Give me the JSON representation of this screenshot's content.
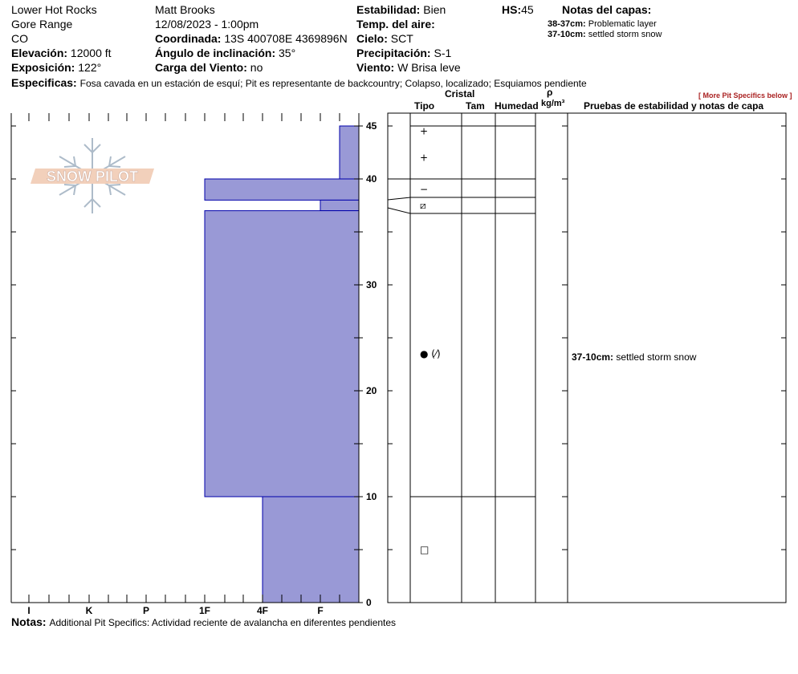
{
  "header": {
    "location": "Lower Hot Rocks",
    "range": "Gore Range",
    "state": "CO",
    "elevation_label": "Elevación:",
    "elevation_value": "12000 ft",
    "aspect_label": "Exposición:",
    "aspect_value": "122°",
    "observer": "Matt Brooks",
    "datetime": "12/08/2023 - 1:00pm",
    "coord_label": "Coordinada:",
    "coord_value": "13S 400708E 4369896N",
    "incline_label": "Ángulo de inclinación:",
    "incline_value": "35°",
    "wind_load_label": "Carga del Viento:",
    "wind_load_value": "no",
    "stability_label": "Estabilidad:",
    "stability_value": "Bien",
    "hs_label": "HS:",
    "hs_value": "45",
    "air_temp_label": "Temp. del aire:",
    "air_temp_value": "",
    "sky_label": "Cielo:",
    "sky_value": "SCT",
    "precip_label": "Precipitación:",
    "precip_value": "S-1",
    "wind_label": "Viento:",
    "wind_value": "W Brisa leve",
    "layer_notes_title": "Notas del capas:",
    "layer_notes": [
      {
        "range": "38-37cm:",
        "text": "Problematic layer"
      },
      {
        "range": "37-10cm:",
        "text": "settled storm snow"
      }
    ],
    "specifics_label": "Especificas:",
    "specifics_value": "Fosa cavada en un estación de esquí; Pit es representante de backcountry; Colapso, localizado; Esquiamos pendiente"
  },
  "more_specifics_link": "[ More Pit Specifics below ]",
  "table_headers": {
    "crystal": "Cristal",
    "type": "Tipo",
    "size": "Tam",
    "moisture": "Humedad",
    "rho": "ρ",
    "density_unit": "kg/m³",
    "tests": "Pruebas de estabilidad y notas de capa"
  },
  "logo_text": "SNOW PILOT",
  "chart_data": {
    "type": "hardness_profile",
    "y_axis_unit": "cm",
    "ylim": [
      0,
      45
    ],
    "y_ticks": [
      "0",
      "10",
      "20",
      "30",
      "40",
      "45"
    ],
    "y_tick_values": [
      0,
      10,
      20,
      30,
      40,
      45
    ],
    "x_ticks": [
      "I",
      "K",
      "P",
      "1F",
      "4F",
      "F"
    ],
    "layers": [
      {
        "top": 45,
        "bottom": 40,
        "hardness": "F"
      },
      {
        "top": 40,
        "bottom": 38,
        "hardness": "1F"
      },
      {
        "top": 38,
        "bottom": 37,
        "hardness": "F"
      },
      {
        "top": 37,
        "bottom": 10,
        "hardness": "1F"
      },
      {
        "top": 10,
        "bottom": 0,
        "hardness": "4F"
      }
    ],
    "layer_boundaries": [
      45,
      40,
      38,
      37,
      10,
      0
    ],
    "crystal_types": [
      {
        "depth": 44.5,
        "symbol": "+"
      },
      {
        "depth": 42,
        "symbol": "+"
      },
      {
        "depth": 39,
        "symbol": "−"
      },
      {
        "depth": 37.5,
        "symbol": "⧄"
      },
      {
        "depth": 23.5,
        "symbol": "● (⁄)"
      },
      {
        "depth": 5,
        "symbol": "□"
      }
    ],
    "layer_note_positions": [
      {
        "depth": 23.5,
        "range": "37-10cm:",
        "text": "settled storm snow"
      }
    ],
    "fill_color": "#9999d6",
    "edge_color": "#0000aa"
  },
  "footer": {
    "notes_label": "Notas:",
    "notes_value": "Additional Pit Specifics: Actividad reciente de avalancha en diferentes pendientes"
  }
}
